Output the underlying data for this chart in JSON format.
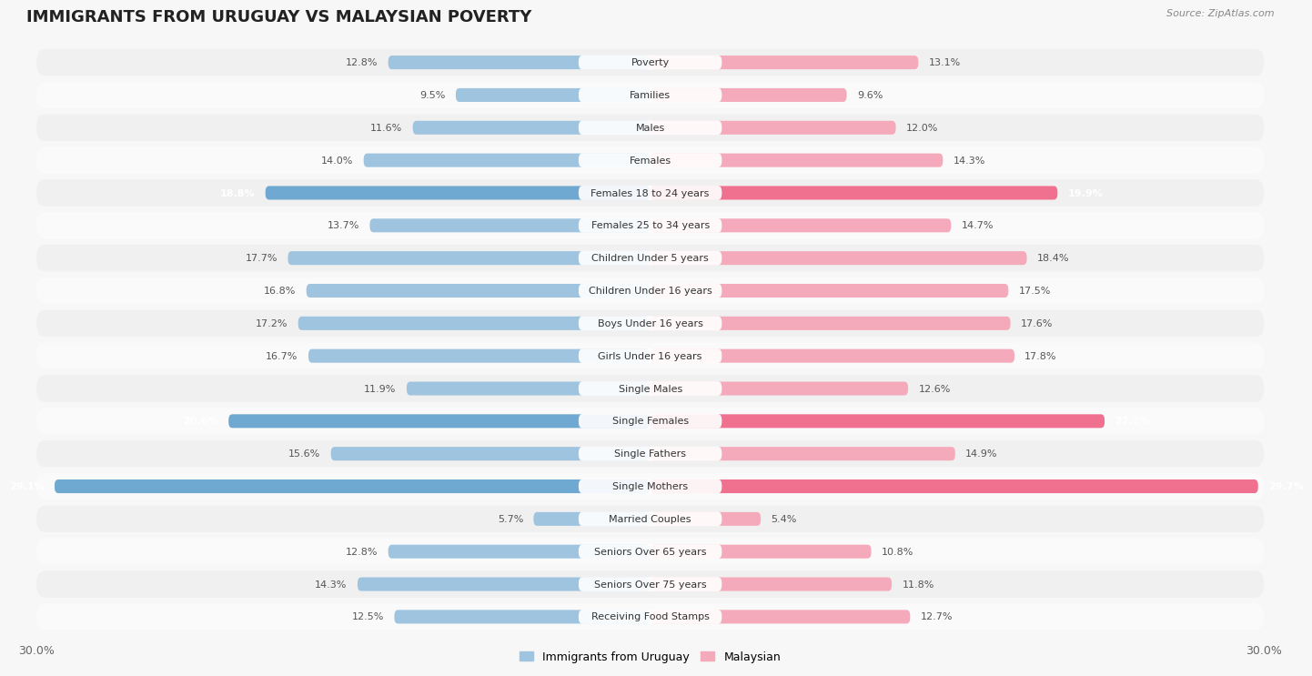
{
  "title": "IMMIGRANTS FROM URUGUAY VS MALAYSIAN POVERTY",
  "source": "Source: ZipAtlas.com",
  "categories": [
    "Poverty",
    "Families",
    "Males",
    "Females",
    "Females 18 to 24 years",
    "Females 25 to 34 years",
    "Children Under 5 years",
    "Children Under 16 years",
    "Boys Under 16 years",
    "Girls Under 16 years",
    "Single Males",
    "Single Females",
    "Single Fathers",
    "Single Mothers",
    "Married Couples",
    "Seniors Over 65 years",
    "Seniors Over 75 years",
    "Receiving Food Stamps"
  ],
  "uruguay_values": [
    12.8,
    9.5,
    11.6,
    14.0,
    18.8,
    13.7,
    17.7,
    16.8,
    17.2,
    16.7,
    11.9,
    20.6,
    15.6,
    29.1,
    5.7,
    12.8,
    14.3,
    12.5
  ],
  "malaysian_values": [
    13.1,
    9.6,
    12.0,
    14.3,
    19.9,
    14.7,
    18.4,
    17.5,
    17.6,
    17.8,
    12.6,
    22.2,
    14.9,
    29.7,
    5.4,
    10.8,
    11.8,
    12.7
  ],
  "uruguay_color": "#9ec4df",
  "malaysian_color": "#f5aabc",
  "uruguay_highlight_color": "#6fa8d0",
  "malaysian_highlight_color": "#f07090",
  "highlight_indices": [
    4,
    11,
    13
  ],
  "axis_max": 30.0,
  "background_color": "#f7f7f7",
  "row_bg_even": "#f0f0f0",
  "row_bg_odd": "#fafafa",
  "title_fontsize": 13,
  "label_fontsize": 8,
  "value_fontsize": 8,
  "legend_fontsize": 9
}
